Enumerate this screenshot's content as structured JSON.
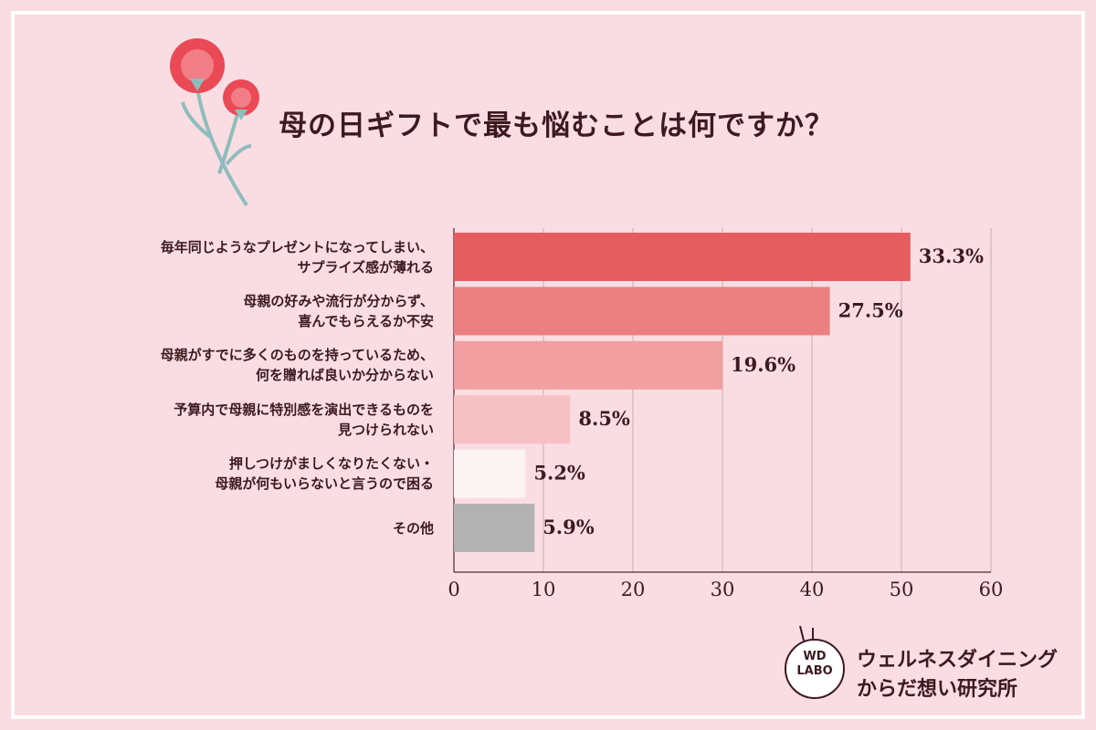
{
  "chart_data": {
    "type": "barh",
    "title": "母の日ギフトで最も悩むことは何ですか？",
    "categories": [
      "毎年同じようなプレゼントになってしまい、\nサプライズ感が薄れる",
      "母親の好みや流行が分からず、\n喜んでもらえるか不安",
      "母親がすでに多くのものを持っているため、\n何を贈れば良いか分からない",
      "予算内で母親に特別感を演出できるものを\n見つけられない",
      "押しつけがましくなりたくない・\n母親が何もいらないと言うので困る",
      "その他"
    ],
    "values": [
      51,
      42,
      30,
      13,
      8,
      9
    ],
    "percent_labels": [
      "33.3%",
      "27.5%",
      "19.6%",
      "8.5%",
      "5.2%",
      "5.9%"
    ],
    "colors": [
      "#e55d5e",
      "#ec8081",
      "#f19fa1",
      "#f6c1c3",
      "#fcf3f3",
      "#b2b2b2"
    ],
    "xlim": [
      0,
      60
    ],
    "xticks": [
      0,
      10,
      20,
      30,
      40,
      50,
      60
    ],
    "grid": true
  },
  "logo": {
    "mark": "WD\nLABO",
    "name": "ウェルネスダイニング\nからだ想い研究所"
  }
}
